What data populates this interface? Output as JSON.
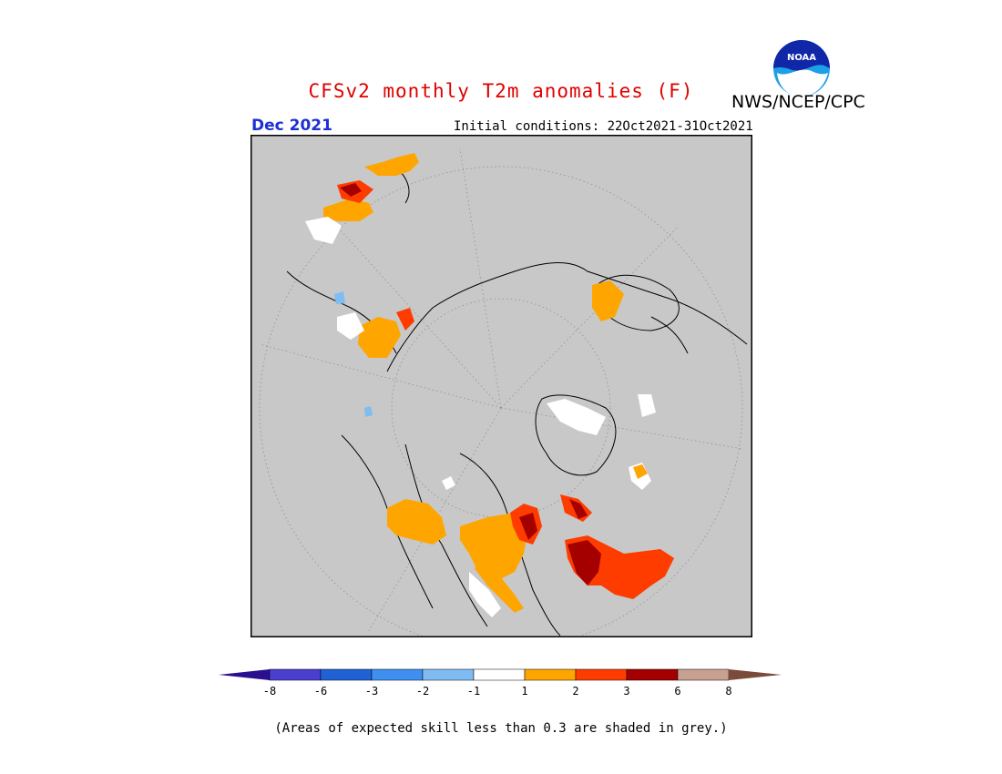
{
  "header": {
    "title": "CFSv2 monthly T2m anomalies (F)",
    "organization": "NWS/NCEP/CPC",
    "logo_text": "NOAA",
    "target_month": "Dec 2021",
    "initial_conditions": "Initial conditions: 22Oct2021-31Oct2021"
  },
  "map": {
    "background_color": "#c8c8c8",
    "projection": "north-polar-stereographic"
  },
  "legend": {
    "levels": [
      "-8",
      "-6",
      "-3",
      "-2",
      "-1",
      "1",
      "2",
      "3",
      "6",
      "8"
    ],
    "colors": [
      "#2a0f8f",
      "#4a3fcf",
      "#1f62d6",
      "#3f8ff0",
      "#7fbcf2",
      "#ffffff",
      "#ffa500",
      "#ff3c00",
      "#a50000",
      "#c8a090",
      "#7a4a3a"
    ]
  },
  "footnote": "(Areas of expected skill less than 0.3 are shaded in grey.)"
}
